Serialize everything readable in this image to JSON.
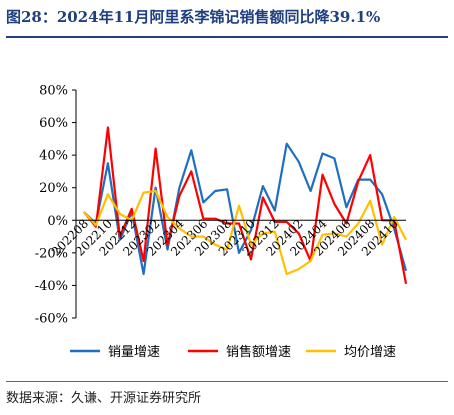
{
  "title": "图28：2024年11月阿里系李锦记销售额同比降39.1%",
  "source": "数据来源：久谦、开源证券研究所",
  "chart_data": {
    "type": "line",
    "title": "",
    "xlabel": "",
    "ylabel": "",
    "ylim": [
      -60,
      80
    ],
    "yticks": [
      -60,
      -40,
      -20,
      0,
      20,
      40,
      60,
      80
    ],
    "y_format": "percent",
    "grid": false,
    "legend": "bottom",
    "x": [
      "202208",
      "202209",
      "202210",
      "202211",
      "202212",
      "202301",
      "202302",
      "202303",
      "202304",
      "202305",
      "202306",
      "202307",
      "202308",
      "202309",
      "202310",
      "202311",
      "202312",
      "202401",
      "202402",
      "202403",
      "202404",
      "202405",
      "202406",
      "202407",
      "202408",
      "202409",
      "202410",
      "202411"
    ],
    "x_tick_labels": [
      "202208",
      "202210",
      "202212",
      "202302",
      "202304",
      "202306",
      "202308",
      "202310",
      "202312",
      "202402",
      "202404",
      "202406",
      "202408",
      "202410"
    ],
    "series": [
      {
        "name": "销量增速",
        "color": "#1f6fc0",
        "values": [
          5,
          -2,
          35,
          -12,
          5,
          -33,
          20,
          -18,
          20,
          43,
          11,
          18,
          19,
          -20,
          -6,
          21,
          6,
          47,
          36,
          18,
          41,
          38,
          8,
          25,
          25,
          16,
          -5,
          -31
        ]
      },
      {
        "name": "销售额增速",
        "color": "#ff0000",
        "values": [
          5,
          -4,
          57,
          -10,
          7,
          -25,
          44,
          -15,
          15,
          30,
          1,
          1,
          -2,
          -2,
          -24,
          14,
          -1,
          -1,
          -8,
          -25,
          28,
          10,
          -2,
          24,
          40,
          0,
          0,
          -39
        ]
      },
      {
        "name": "均价增速",
        "color": "#ffc000",
        "values": [
          5,
          -3,
          16,
          4,
          0,
          17,
          18,
          2,
          -5,
          -10,
          -10,
          -15,
          -18,
          9,
          -15,
          -8,
          -7,
          -33,
          -30,
          -25,
          -9,
          -8,
          -10,
          -2,
          12,
          -15,
          2,
          -12
        ]
      }
    ]
  }
}
